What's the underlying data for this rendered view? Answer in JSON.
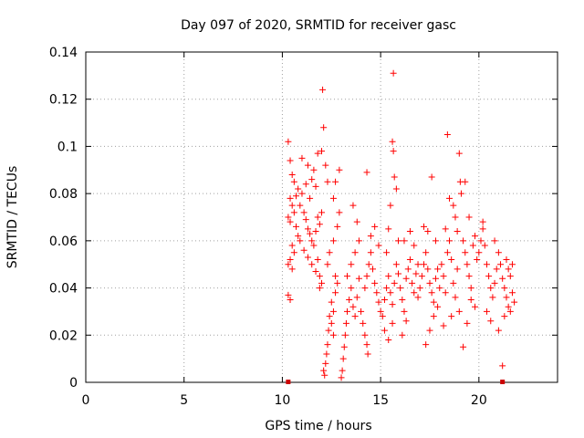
{
  "chart_data": {
    "type": "scatter",
    "title": "Day 097 of 2020, SRMTID for receiver gasc",
    "xlabel": "GPS time / hours",
    "ylabel": "SRMTID / TECUs",
    "xlim": [
      0,
      24
    ],
    "ylim": [
      0,
      0.14
    ],
    "xticks": [
      0,
      5,
      10,
      15,
      20
    ],
    "xtick_labels": [
      "0",
      "5",
      "10",
      "15",
      "20"
    ],
    "yticks": [
      0,
      0.02,
      0.04,
      0.06,
      0.08,
      0.1,
      0.12,
      0.14
    ],
    "ytick_labels": [
      "0",
      "0.02",
      "0.04",
      "0.06",
      "0.08",
      "0.1",
      "0.12",
      "0.14"
    ],
    "grid": true,
    "series": [
      {
        "name": "SRMTID",
        "marker": "plus",
        "color": "#ff0000",
        "points": [
          [
            10.3,
            0.102
          ],
          [
            10.4,
            0.094
          ],
          [
            10.5,
            0.088
          ],
          [
            10.6,
            0.085
          ],
          [
            10.7,
            0.079
          ],
          [
            10.8,
            0.082
          ],
          [
            10.4,
            0.078
          ],
          [
            10.5,
            0.075
          ],
          [
            10.6,
            0.072
          ],
          [
            10.3,
            0.07
          ],
          [
            10.4,
            0.068
          ],
          [
            10.7,
            0.066
          ],
          [
            10.8,
            0.062
          ],
          [
            10.9,
            0.06
          ],
          [
            10.5,
            0.058
          ],
          [
            10.6,
            0.055
          ],
          [
            10.4,
            0.052
          ],
          [
            10.3,
            0.05
          ],
          [
            10.5,
            0.048
          ],
          [
            10.3,
            0.037
          ],
          [
            10.4,
            0.035
          ],
          [
            10.9,
            0.075
          ],
          [
            11.0,
            0.08
          ],
          [
            11.1,
            0.072
          ],
          [
            11.2,
            0.069
          ],
          [
            11.3,
            0.065
          ],
          [
            11.4,
            0.063
          ],
          [
            11.5,
            0.06
          ],
          [
            11.6,
            0.058
          ],
          [
            11.7,
            0.064
          ],
          [
            11.8,
            0.07
          ],
          [
            11.9,
            0.067
          ],
          [
            12.0,
            0.072
          ],
          [
            11.0,
            0.095
          ],
          [
            11.3,
            0.092
          ],
          [
            11.5,
            0.086
          ],
          [
            11.7,
            0.083
          ],
          [
            11.8,
            0.097
          ],
          [
            12.0,
            0.098
          ],
          [
            11.6,
            0.09
          ],
          [
            11.2,
            0.084
          ],
          [
            11.4,
            0.078
          ],
          [
            11.1,
            0.056
          ],
          [
            11.3,
            0.053
          ],
          [
            11.5,
            0.05
          ],
          [
            11.7,
            0.047
          ],
          [
            11.9,
            0.045
          ],
          [
            12.0,
            0.042
          ],
          [
            12.05,
            0.124
          ],
          [
            12.1,
            0.108
          ],
          [
            12.2,
            0.092
          ],
          [
            12.3,
            0.085
          ],
          [
            11.9,
            0.04
          ],
          [
            11.8,
            0.052
          ],
          [
            12.1,
            0.005
          ],
          [
            12.15,
            0.003
          ],
          [
            12.2,
            0.008
          ],
          [
            12.25,
            0.012
          ],
          [
            12.3,
            0.016
          ],
          [
            12.35,
            0.022
          ],
          [
            12.4,
            0.028
          ],
          [
            12.5,
            0.034
          ],
          [
            12.6,
            0.03
          ],
          [
            12.7,
            0.038
          ],
          [
            12.8,
            0.042
          ],
          [
            12.5,
            0.025
          ],
          [
            12.6,
            0.02
          ],
          [
            12.7,
            0.045
          ],
          [
            12.3,
            0.05
          ],
          [
            12.4,
            0.055
          ],
          [
            12.6,
            0.06
          ],
          [
            12.8,
            0.066
          ],
          [
            12.9,
            0.072
          ],
          [
            12.6,
            0.078
          ],
          [
            12.7,
            0.085
          ],
          [
            12.9,
            0.09
          ],
          [
            13.0,
            0.002
          ],
          [
            13.05,
            0.005
          ],
          [
            13.1,
            0.01
          ],
          [
            13.15,
            0.015
          ],
          [
            13.2,
            0.02
          ],
          [
            13.25,
            0.025
          ],
          [
            13.3,
            0.03
          ],
          [
            13.4,
            0.035
          ],
          [
            13.5,
            0.04
          ],
          [
            13.6,
            0.032
          ],
          [
            13.7,
            0.028
          ],
          [
            13.8,
            0.036
          ],
          [
            13.9,
            0.044
          ],
          [
            14.0,
            0.03
          ],
          [
            13.3,
            0.045
          ],
          [
            13.5,
            0.05
          ],
          [
            13.7,
            0.055
          ],
          [
            13.9,
            0.06
          ],
          [
            13.6,
            0.075
          ],
          [
            13.8,
            0.068
          ],
          [
            14.1,
            0.025
          ],
          [
            14.2,
            0.02
          ],
          [
            14.3,
            0.016
          ],
          [
            14.35,
            0.012
          ],
          [
            14.2,
            0.04
          ],
          [
            14.3,
            0.045
          ],
          [
            14.4,
            0.05
          ],
          [
            14.5,
            0.055
          ],
          [
            14.6,
            0.048
          ],
          [
            14.7,
            0.042
          ],
          [
            14.8,
            0.038
          ],
          [
            14.9,
            0.034
          ],
          [
            14.3,
            0.089
          ],
          [
            14.5,
            0.062
          ],
          [
            14.7,
            0.066
          ],
          [
            14.9,
            0.058
          ],
          [
            15.0,
            0.03
          ],
          [
            15.1,
            0.028
          ],
          [
            15.2,
            0.035
          ],
          [
            15.3,
            0.04
          ],
          [
            15.4,
            0.045
          ],
          [
            15.5,
            0.038
          ],
          [
            15.6,
            0.033
          ],
          [
            15.7,
            0.042
          ],
          [
            15.8,
            0.05
          ],
          [
            15.9,
            0.046
          ],
          [
            15.65,
            0.131
          ],
          [
            15.6,
            0.102
          ],
          [
            15.65,
            0.098
          ],
          [
            15.7,
            0.087
          ],
          [
            15.8,
            0.082
          ],
          [
            15.5,
            0.075
          ],
          [
            15.4,
            0.065
          ],
          [
            15.9,
            0.06
          ],
          [
            15.3,
            0.055
          ],
          [
            15.2,
            0.022
          ],
          [
            15.4,
            0.018
          ],
          [
            15.6,
            0.025
          ],
          [
            16.0,
            0.04
          ],
          [
            16.1,
            0.035
          ],
          [
            16.2,
            0.03
          ],
          [
            16.3,
            0.044
          ],
          [
            16.4,
            0.048
          ],
          [
            16.5,
            0.052
          ],
          [
            16.6,
            0.042
          ],
          [
            16.7,
            0.038
          ],
          [
            16.8,
            0.046
          ],
          [
            16.9,
            0.05
          ],
          [
            16.2,
            0.06
          ],
          [
            16.5,
            0.064
          ],
          [
            16.7,
            0.058
          ],
          [
            16.9,
            0.036
          ],
          [
            16.1,
            0.02
          ],
          [
            16.3,
            0.026
          ],
          [
            17.0,
            0.04
          ],
          [
            17.1,
            0.045
          ],
          [
            17.2,
            0.05
          ],
          [
            17.3,
            0.055
          ],
          [
            17.4,
            0.048
          ],
          [
            17.5,
            0.042
          ],
          [
            17.6,
            0.038
          ],
          [
            17.7,
            0.034
          ],
          [
            17.8,
            0.044
          ],
          [
            17.9,
            0.048
          ],
          [
            17.2,
            0.066
          ],
          [
            17.4,
            0.064
          ],
          [
            17.6,
            0.087
          ],
          [
            17.8,
            0.06
          ],
          [
            17.3,
            0.016
          ],
          [
            17.5,
            0.022
          ],
          [
            17.7,
            0.028
          ],
          [
            17.9,
            0.032
          ],
          [
            18.0,
            0.04
          ],
          [
            18.1,
            0.05
          ],
          [
            18.2,
            0.045
          ],
          [
            18.3,
            0.038
          ],
          [
            18.4,
            0.055
          ],
          [
            18.5,
            0.06
          ],
          [
            18.6,
            0.052
          ],
          [
            18.7,
            0.042
          ],
          [
            18.8,
            0.036
          ],
          [
            18.9,
            0.048
          ],
          [
            18.4,
            0.105
          ],
          [
            18.5,
            0.078
          ],
          [
            18.7,
            0.075
          ],
          [
            18.9,
            0.064
          ],
          [
            18.2,
            0.024
          ],
          [
            18.6,
            0.028
          ],
          [
            18.3,
            0.065
          ],
          [
            18.8,
            0.07
          ],
          [
            19.0,
            0.097
          ],
          [
            19.05,
            0.085
          ],
          [
            19.1,
            0.08
          ],
          [
            19.2,
            0.06
          ],
          [
            19.3,
            0.055
          ],
          [
            19.4,
            0.05
          ],
          [
            19.5,
            0.045
          ],
          [
            19.6,
            0.04
          ],
          [
            19.7,
            0.058
          ],
          [
            19.8,
            0.062
          ],
          [
            19.9,
            0.052
          ],
          [
            19.0,
            0.03
          ],
          [
            19.2,
            0.015
          ],
          [
            19.4,
            0.025
          ],
          [
            19.6,
            0.035
          ],
          [
            19.5,
            0.07
          ],
          [
            19.3,
            0.085
          ],
          [
            19.8,
            0.032
          ],
          [
            20.0,
            0.055
          ],
          [
            20.1,
            0.06
          ],
          [
            20.2,
            0.065
          ],
          [
            20.3,
            0.058
          ],
          [
            20.4,
            0.05
          ],
          [
            20.5,
            0.045
          ],
          [
            20.6,
            0.04
          ],
          [
            20.7,
            0.036
          ],
          [
            20.8,
            0.042
          ],
          [
            20.9,
            0.048
          ],
          [
            20.2,
            0.068
          ],
          [
            20.4,
            0.03
          ],
          [
            20.6,
            0.026
          ],
          [
            20.8,
            0.06
          ],
          [
            21.0,
            0.055
          ],
          [
            21.1,
            0.05
          ],
          [
            21.2,
            0.044
          ],
          [
            21.3,
            0.04
          ],
          [
            21.4,
            0.036
          ],
          [
            21.5,
            0.032
          ],
          [
            21.6,
            0.045
          ],
          [
            21.7,
            0.038
          ],
          [
            21.8,
            0.034
          ],
          [
            21.3,
            0.028
          ],
          [
            21.5,
            0.048
          ],
          [
            21.2,
            0.007
          ],
          [
            21.0,
            0.022
          ],
          [
            21.6,
            0.03
          ],
          [
            21.7,
            0.05
          ],
          [
            21.4,
            0.052
          ]
        ]
      }
    ],
    "axis_markers": [
      {
        "x": 10.3,
        "y": 0
      },
      {
        "x": 21.2,
        "y": 0
      }
    ]
  }
}
